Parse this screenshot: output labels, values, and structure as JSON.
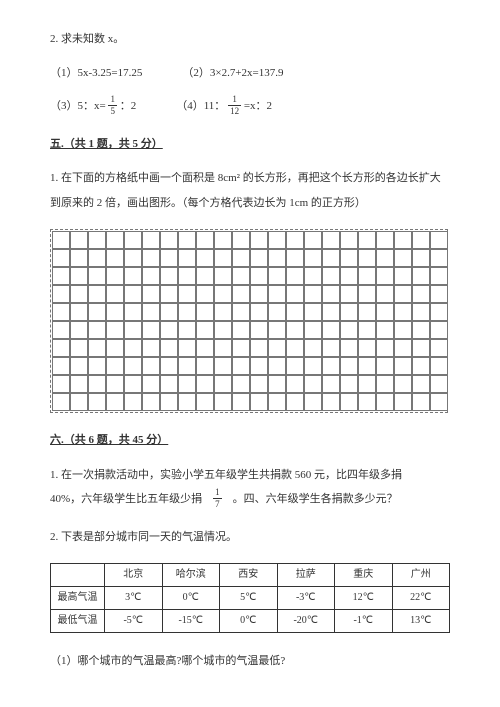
{
  "q2": {
    "title": "2. 求未知数 x。"
  },
  "eqs": {
    "a": "（1）5x-3.25=17.25",
    "b_pre": "（2）3×2.7+2x=137.9",
    "c_pre": "（3）5：x= ",
    "c_num": "1",
    "c_den": "5",
    "c_post": " ：2",
    "d_pre": "（4）11： ",
    "d_num": "1",
    "d_den": "12",
    "d_post": " =x：2"
  },
  "sec5": {
    "head": "五.（共 1 题，共 5 分）",
    "q1": "1. 在下面的方格纸中画一个面积是 8cm² 的长方形，再把这个长方形的各边长扩大到原来的 2 倍，画出图形。（每个方格代表边长为 1cm 的正方形）"
  },
  "grid": {
    "cols": 22,
    "rows": 10
  },
  "sec6": {
    "head": "六.（共 6 题，共 45 分）",
    "q1_a": "1. 在一次捐款活动中，实验小学五年级学生共捐款 560 元，比四年级多捐",
    "q1_b_pre": "40%，六年级学生比五年级少捐　",
    "q1_num": "1",
    "q1_den": "7",
    "q1_b_post": "　。四、六年级学生各捐款多少元？",
    "q2": "2. 下表是部分城市同一天的气温情况。",
    "sub1": "（1）哪个城市的气温最高?哪个城市的气温最低?"
  },
  "table": {
    "corner": "",
    "cities": [
      "北京",
      "哈尔滨",
      "西安",
      "拉萨",
      "重庆",
      "广州"
    ],
    "rows": [
      {
        "label": "最高气温",
        "vals": [
          "3℃",
          "0℃",
          "5℃",
          "-3℃",
          "12℃",
          "22℃"
        ]
      },
      {
        "label": "最低气温",
        "vals": [
          "-5℃",
          "-15℃",
          "0℃",
          "-20℃",
          "-1℃",
          "13℃"
        ]
      }
    ]
  }
}
